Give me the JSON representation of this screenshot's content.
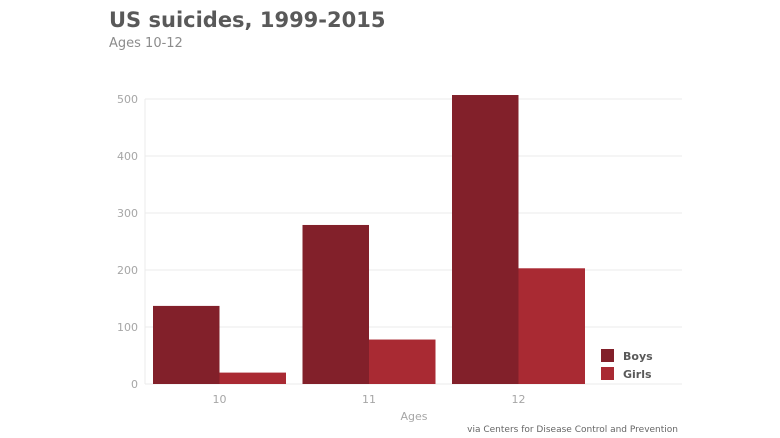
{
  "chart_data": {
    "type": "bar",
    "title": "US suicides, 1999-2015",
    "subtitle": "Ages 10-12",
    "xlabel": "Ages",
    "ylabel": "",
    "categories": [
      "10",
      "11",
      "12"
    ],
    "ylim": [
      0,
      500
    ],
    "yticks": [
      0,
      100,
      200,
      300,
      400,
      500
    ],
    "grid": true,
    "legend_position": "bottom-right",
    "series": [
      {
        "name": "Boys",
        "color": "#82202a",
        "values": [
          137,
          279,
          507
        ]
      },
      {
        "name": "Girls",
        "color": "#a92a33",
        "values": [
          20,
          78,
          203
        ]
      }
    ],
    "source": "via Centers for Disease Control and Prevention"
  }
}
